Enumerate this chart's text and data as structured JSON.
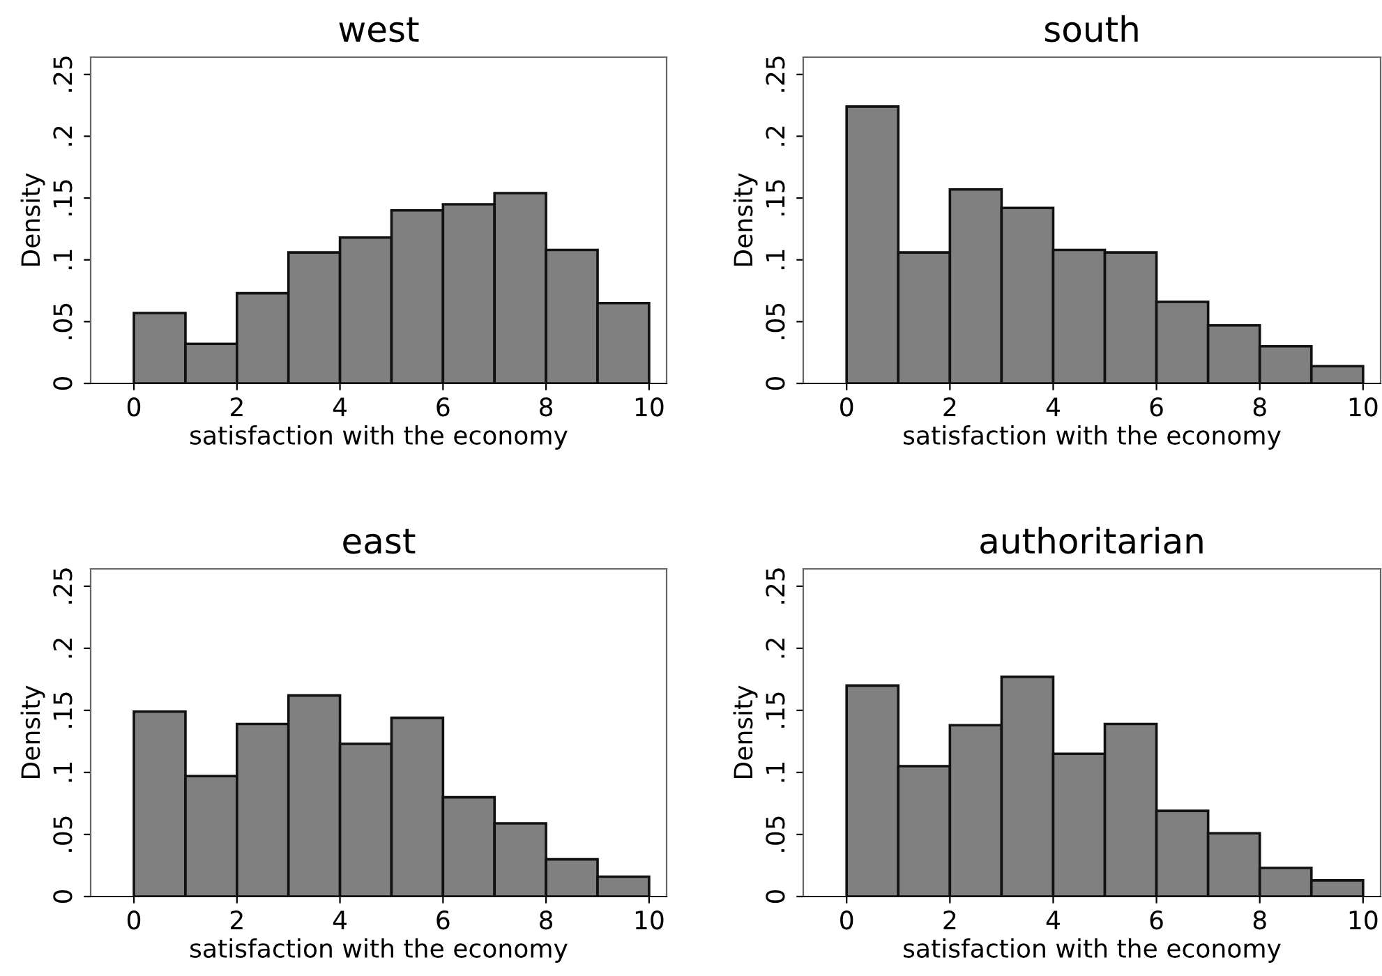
{
  "chart_data": [
    {
      "type": "histogram",
      "title": "west",
      "xlabel": "satisfaction with the economy",
      "ylabel": "Density",
      "color": "#808080",
      "bins": [
        0,
        1,
        2,
        3,
        4,
        5,
        6,
        7,
        8,
        9,
        10
      ],
      "values": [
        0.057,
        0.032,
        0.073,
        0.106,
        0.118,
        0.14,
        0.145,
        0.154,
        0.108,
        0.065
      ],
      "xlim": [
        -0.84,
        10.34
      ],
      "ylim": [
        0,
        0.264
      ],
      "xticks": [
        0,
        2,
        4,
        6,
        8,
        10
      ],
      "yticks": [
        0,
        {
          "value": 0.05,
          "label": ".05"
        },
        {
          "value": 0.1,
          "label": ".1"
        },
        {
          "value": 0.15,
          "label": ".15"
        },
        {
          "value": 0.2,
          "label": ".2"
        },
        {
          "value": 0.25,
          "label": ".25"
        }
      ],
      "grid": false
    },
    {
      "type": "histogram",
      "title": "south",
      "xlabel": "satisfaction with the economy",
      "ylabel": "Density",
      "color": "#808080",
      "bins": [
        0,
        1,
        2,
        3,
        4,
        5,
        6,
        7,
        8,
        9,
        10
      ],
      "values": [
        0.224,
        0.106,
        0.157,
        0.142,
        0.108,
        0.106,
        0.066,
        0.047,
        0.03,
        0.014
      ],
      "xlim": [
        -0.84,
        10.34
      ],
      "ylim": [
        0,
        0.264
      ],
      "xticks": [
        0,
        2,
        4,
        6,
        8,
        10
      ],
      "yticks": [
        0,
        {
          "value": 0.05,
          "label": ".05"
        },
        {
          "value": 0.1,
          "label": ".1"
        },
        {
          "value": 0.15,
          "label": ".15"
        },
        {
          "value": 0.2,
          "label": ".2"
        },
        {
          "value": 0.25,
          "label": ".25"
        }
      ],
      "grid": false
    },
    {
      "type": "histogram",
      "title": "east",
      "xlabel": "satisfaction with the economy",
      "ylabel": "Density",
      "color": "#808080",
      "bins": [
        0,
        1,
        2,
        3,
        4,
        5,
        6,
        7,
        8,
        9,
        10
      ],
      "values": [
        0.149,
        0.097,
        0.139,
        0.162,
        0.123,
        0.144,
        0.08,
        0.059,
        0.03,
        0.016
      ],
      "xlim": [
        -0.84,
        10.34
      ],
      "ylim": [
        0,
        0.264
      ],
      "xticks": [
        0,
        2,
        4,
        6,
        8,
        10
      ],
      "yticks": [
        0,
        {
          "value": 0.05,
          "label": ".05"
        },
        {
          "value": 0.1,
          "label": ".1"
        },
        {
          "value": 0.15,
          "label": ".15"
        },
        {
          "value": 0.2,
          "label": ".2"
        },
        {
          "value": 0.25,
          "label": ".25"
        }
      ],
      "grid": false
    },
    {
      "type": "histogram",
      "title": "authoritarian",
      "xlabel": "satisfaction with the economy",
      "ylabel": "Density",
      "color": "#808080",
      "bins": [
        0,
        1,
        2,
        3,
        4,
        5,
        6,
        7,
        8,
        9,
        10
      ],
      "values": [
        0.17,
        0.105,
        0.138,
        0.177,
        0.115,
        0.139,
        0.069,
        0.051,
        0.023,
        0.013
      ],
      "xlim": [
        -0.84,
        10.34
      ],
      "ylim": [
        0,
        0.264
      ],
      "xticks": [
        0,
        2,
        4,
        6,
        8,
        10
      ],
      "yticks": [
        0,
        {
          "value": 0.05,
          "label": ".05"
        },
        {
          "value": 0.1,
          "label": ".1"
        },
        {
          "value": 0.15,
          "label": ".15"
        },
        {
          "value": 0.2,
          "label": ".2"
        },
        {
          "value": 0.25,
          "label": ".25"
        }
      ],
      "grid": false
    }
  ]
}
